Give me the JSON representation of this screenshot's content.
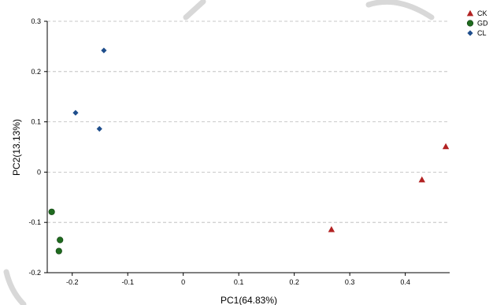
{
  "chart_data": {
    "type": "scatter",
    "xlabel": "PC1(64.83%)",
    "ylabel": "PC2(13.13%)",
    "xlim": [
      -0.245,
      0.48
    ],
    "ylim": [
      -0.2,
      0.3
    ],
    "x_ticks": [
      -0.2,
      -0.1,
      0,
      0.1,
      0.2,
      0.3,
      0.4
    ],
    "x_tick_labels": [
      "-0.2",
      "-0.1",
      "0",
      "0.1",
      "0.2",
      "0.3",
      "0.4"
    ],
    "y_ticks": [
      0.3,
      0.2,
      0.1,
      0,
      -0.1,
      -0.2
    ],
    "y_tick_labels": [
      "0.3",
      "0.2",
      "0.1",
      "0",
      "-0.1",
      "-0.2"
    ],
    "grid": "horizontal dashed",
    "legend_position": "top-right",
    "series": [
      {
        "name": "CK",
        "marker": "triangle",
        "color": "#b22222",
        "points": [
          {
            "x": 0.267,
            "y": -0.114
          },
          {
            "x": 0.43,
            "y": -0.015
          },
          {
            "x": 0.473,
            "y": 0.051
          }
        ]
      },
      {
        "name": "GD",
        "marker": "circle",
        "color": "#1f6b1f",
        "points": [
          {
            "x": -0.237,
            "y": -0.079
          },
          {
            "x": -0.222,
            "y": -0.135
          },
          {
            "x": -0.224,
            "y": -0.157
          }
        ]
      },
      {
        "name": "CL",
        "marker": "diamond",
        "color": "#1f4e8c",
        "points": [
          {
            "x": -0.143,
            "y": 0.242
          },
          {
            "x": -0.194,
            "y": 0.118
          },
          {
            "x": -0.151,
            "y": 0.086
          }
        ]
      }
    ]
  }
}
